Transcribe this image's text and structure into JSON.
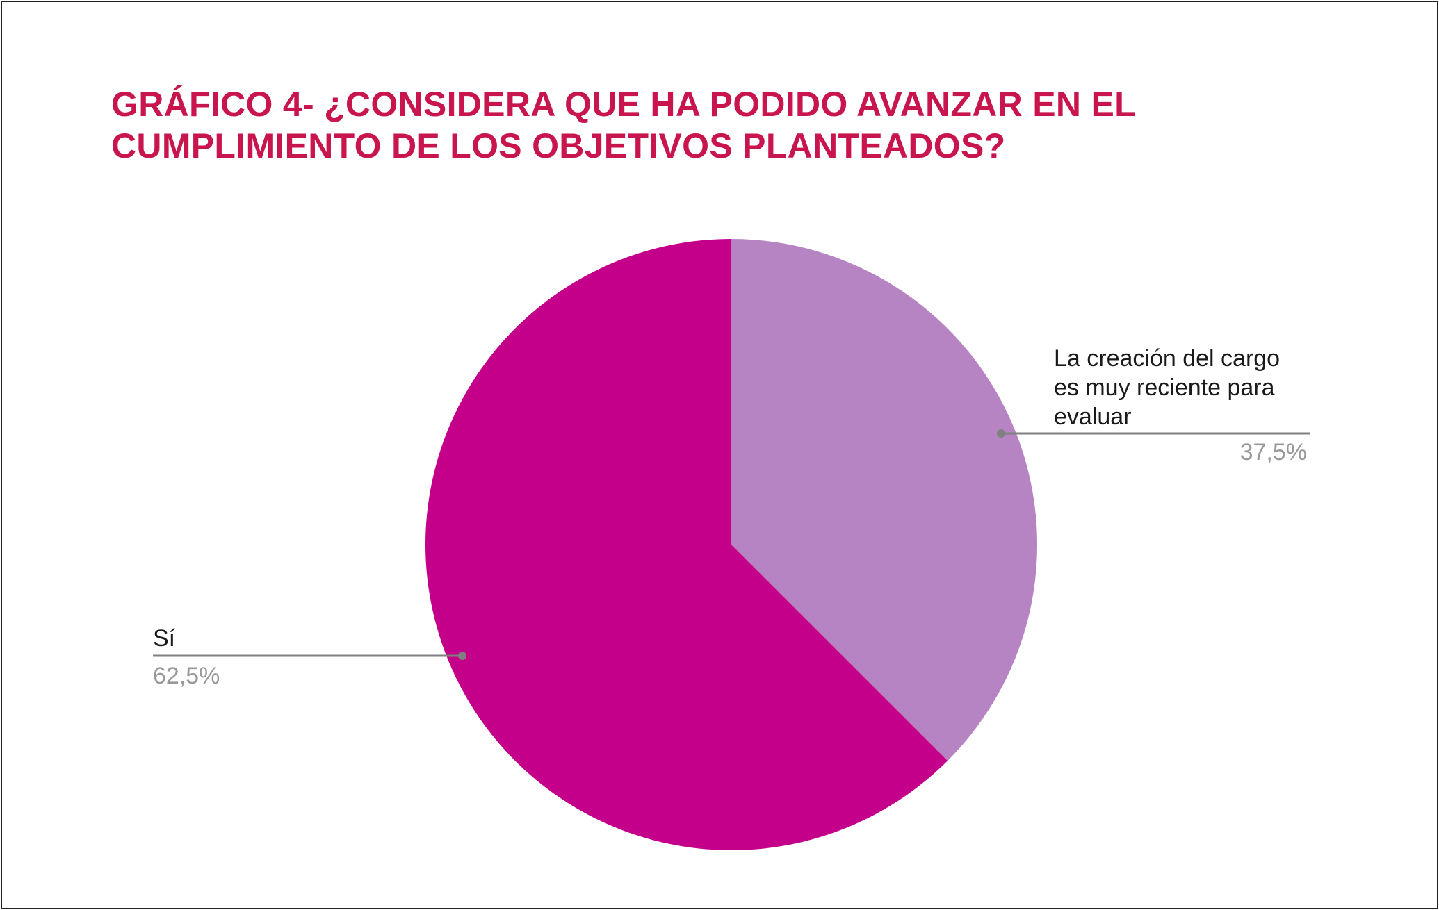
{
  "chart_data": {
    "type": "pie",
    "title_lines": [
      "GRÁFICO 4- ¿CONSIDERA QUE HA PODIDO AVANZAR EN EL",
      "CUMPLIMIENTO DE LOS OBJETIVOS PLANTEADOS?"
    ],
    "slices": [
      {
        "label_lines": [
          "La creación del cargo",
          "es muy reciente para",
          "evaluar"
        ],
        "value": 37.5,
        "value_label": "37,5%",
        "color": "#b784c3"
      },
      {
        "label_lines": [
          "Sí"
        ],
        "value": 62.5,
        "value_label": "62,5%",
        "color": "#c4008b"
      }
    ],
    "colors": {
      "title": "#c8154e",
      "label_text": "#1a1a1a",
      "value_text": "#999999",
      "leader_line": "#808080"
    }
  }
}
